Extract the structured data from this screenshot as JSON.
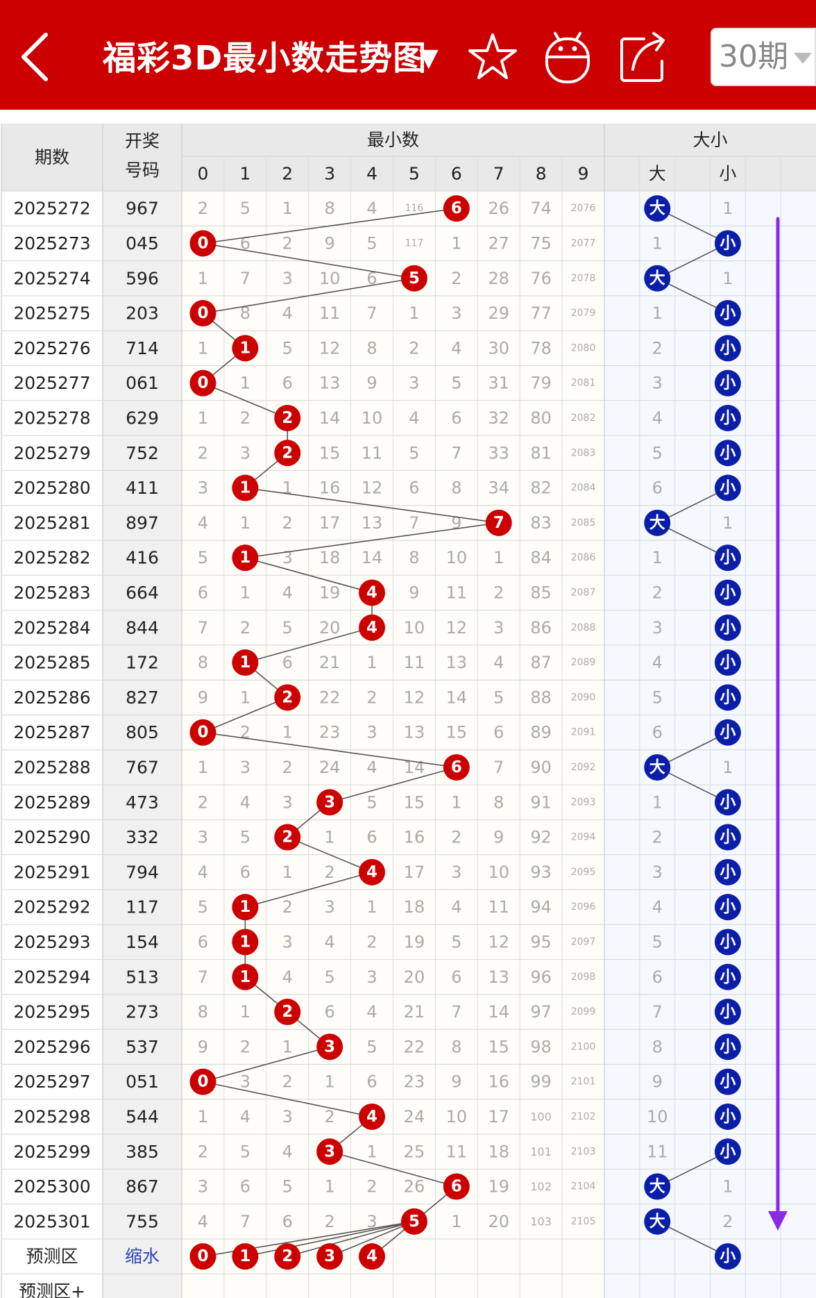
{
  "app": {
    "title": "福彩3D最小数走势图",
    "period_selector": "30期"
  },
  "header_icons": [
    "back-arrow-icon",
    "star-icon",
    "android-robot-icon",
    "share-icon"
  ],
  "table": {
    "col_period": "期数",
    "col_number_line1": "开奖",
    "col_number_line2": "号码",
    "group_min": "最小数",
    "group_size": "大小",
    "digit_headers": [
      "0",
      "1",
      "2",
      "3",
      "4",
      "5",
      "6",
      "7",
      "8",
      "9"
    ],
    "size_headers": [
      "大",
      "",
      "小",
      ""
    ],
    "big_label": "大",
    "small_label": "小",
    "rows": [
      {
        "period": "2025272",
        "number": "967",
        "cells": [
          "2",
          "5",
          "1",
          "8",
          "4",
          "116",
          "6",
          "26",
          "74",
          "2076"
        ],
        "hit": 6,
        "size": "大",
        "size_cells": [
          "大",
          "",
          "1",
          ""
        ]
      },
      {
        "period": "2025273",
        "number": "045",
        "cells": [
          "0",
          "6",
          "2",
          "9",
          "5",
          "117",
          "1",
          "27",
          "75",
          "2077"
        ],
        "hit": 0,
        "size": "小",
        "size_cells": [
          "1",
          "",
          "小",
          ""
        ]
      },
      {
        "period": "2025274",
        "number": "596",
        "cells": [
          "1",
          "7",
          "3",
          "10",
          "6",
          "5",
          "2",
          "28",
          "76",
          "2078"
        ],
        "hit": 5,
        "size": "大",
        "size_cells": [
          "大",
          "",
          "1",
          ""
        ]
      },
      {
        "period": "2025275",
        "number": "203",
        "cells": [
          "0",
          "8",
          "4",
          "11",
          "7",
          "1",
          "3",
          "29",
          "77",
          "2079"
        ],
        "hit": 0,
        "size": "小",
        "size_cells": [
          "1",
          "",
          "小",
          ""
        ]
      },
      {
        "period": "2025276",
        "number": "714",
        "cells": [
          "1",
          "1",
          "5",
          "12",
          "8",
          "2",
          "4",
          "30",
          "78",
          "2080"
        ],
        "hit": 1,
        "size": "小",
        "size_cells": [
          "2",
          "",
          "小",
          ""
        ]
      },
      {
        "period": "2025277",
        "number": "061",
        "cells": [
          "0",
          "1",
          "6",
          "13",
          "9",
          "3",
          "5",
          "31",
          "79",
          "2081"
        ],
        "hit": 0,
        "size": "小",
        "size_cells": [
          "3",
          "",
          "小",
          ""
        ]
      },
      {
        "period": "2025278",
        "number": "629",
        "cells": [
          "1",
          "2",
          "2",
          "14",
          "10",
          "4",
          "6",
          "32",
          "80",
          "2082"
        ],
        "hit": 2,
        "size": "小",
        "size_cells": [
          "4",
          "",
          "小",
          ""
        ]
      },
      {
        "period": "2025279",
        "number": "752",
        "cells": [
          "2",
          "3",
          "2",
          "15",
          "11",
          "5",
          "7",
          "33",
          "81",
          "2083"
        ],
        "hit": 2,
        "size": "小",
        "size_cells": [
          "5",
          "",
          "小",
          ""
        ]
      },
      {
        "period": "2025280",
        "number": "411",
        "cells": [
          "3",
          "1",
          "1",
          "16",
          "12",
          "6",
          "8",
          "34",
          "82",
          "2084"
        ],
        "hit": 1,
        "size": "小",
        "size_cells": [
          "6",
          "",
          "小",
          ""
        ]
      },
      {
        "period": "2025281",
        "number": "897",
        "cells": [
          "4",
          "1",
          "2",
          "17",
          "13",
          "7",
          "9",
          "7",
          "83",
          "2085"
        ],
        "hit": 7,
        "size": "大",
        "size_cells": [
          "大",
          "",
          "1",
          ""
        ]
      },
      {
        "period": "2025282",
        "number": "416",
        "cells": [
          "5",
          "1",
          "3",
          "18",
          "14",
          "8",
          "10",
          "1",
          "84",
          "2086"
        ],
        "hit": 1,
        "size": "小",
        "size_cells": [
          "1",
          "",
          "小",
          ""
        ]
      },
      {
        "period": "2025283",
        "number": "664",
        "cells": [
          "6",
          "1",
          "4",
          "19",
          "4",
          "9",
          "11",
          "2",
          "85",
          "2087"
        ],
        "hit": 4,
        "size": "小",
        "size_cells": [
          "2",
          "",
          "小",
          ""
        ]
      },
      {
        "period": "2025284",
        "number": "844",
        "cells": [
          "7",
          "2",
          "5",
          "20",
          "4",
          "10",
          "12",
          "3",
          "86",
          "2088"
        ],
        "hit": 4,
        "size": "小",
        "size_cells": [
          "3",
          "",
          "小",
          ""
        ]
      },
      {
        "period": "2025285",
        "number": "172",
        "cells": [
          "8",
          "1",
          "6",
          "21",
          "1",
          "11",
          "13",
          "4",
          "87",
          "2089"
        ],
        "hit": 1,
        "size": "小",
        "size_cells": [
          "4",
          "",
          "小",
          ""
        ]
      },
      {
        "period": "2025286",
        "number": "827",
        "cells": [
          "9",
          "1",
          "2",
          "22",
          "2",
          "12",
          "14",
          "5",
          "88",
          "2090"
        ],
        "hit": 2,
        "size": "小",
        "size_cells": [
          "5",
          "",
          "小",
          ""
        ]
      },
      {
        "period": "2025287",
        "number": "805",
        "cells": [
          "0",
          "2",
          "1",
          "23",
          "3",
          "13",
          "15",
          "6",
          "89",
          "2091"
        ],
        "hit": 0,
        "size": "小",
        "size_cells": [
          "6",
          "",
          "小",
          ""
        ]
      },
      {
        "period": "2025288",
        "number": "767",
        "cells": [
          "1",
          "3",
          "2",
          "24",
          "4",
          "14",
          "6",
          "7",
          "90",
          "2092"
        ],
        "hit": 6,
        "size": "大",
        "size_cells": [
          "大",
          "",
          "1",
          ""
        ]
      },
      {
        "period": "2025289",
        "number": "473",
        "cells": [
          "2",
          "4",
          "3",
          "3",
          "5",
          "15",
          "1",
          "8",
          "91",
          "2093"
        ],
        "hit": 3,
        "size": "小",
        "size_cells": [
          "1",
          "",
          "小",
          ""
        ]
      },
      {
        "period": "2025290",
        "number": "332",
        "cells": [
          "3",
          "5",
          "2",
          "1",
          "6",
          "16",
          "2",
          "9",
          "92",
          "2094"
        ],
        "hit": 2,
        "size": "小",
        "size_cells": [
          "2",
          "",
          "小",
          ""
        ]
      },
      {
        "period": "2025291",
        "number": "794",
        "cells": [
          "4",
          "6",
          "1",
          "2",
          "4",
          "17",
          "3",
          "10",
          "93",
          "2095"
        ],
        "hit": 4,
        "size": "小",
        "size_cells": [
          "3",
          "",
          "小",
          ""
        ]
      },
      {
        "period": "2025292",
        "number": "117",
        "cells": [
          "5",
          "1",
          "2",
          "3",
          "1",
          "18",
          "4",
          "11",
          "94",
          "2096"
        ],
        "hit": 1,
        "size": "小",
        "size_cells": [
          "4",
          "",
          "小",
          ""
        ]
      },
      {
        "period": "2025293",
        "number": "154",
        "cells": [
          "6",
          "1",
          "3",
          "4",
          "2",
          "19",
          "5",
          "12",
          "95",
          "2097"
        ],
        "hit": 1,
        "size": "小",
        "size_cells": [
          "5",
          "",
          "小",
          ""
        ]
      },
      {
        "period": "2025294",
        "number": "513",
        "cells": [
          "7",
          "1",
          "4",
          "5",
          "3",
          "20",
          "6",
          "13",
          "96",
          "2098"
        ],
        "hit": 1,
        "size": "小",
        "size_cells": [
          "6",
          "",
          "小",
          ""
        ]
      },
      {
        "period": "2025295",
        "number": "273",
        "cells": [
          "8",
          "1",
          "2",
          "6",
          "4",
          "21",
          "7",
          "14",
          "97",
          "2099"
        ],
        "hit": 2,
        "size": "小",
        "size_cells": [
          "7",
          "",
          "小",
          ""
        ]
      },
      {
        "period": "2025296",
        "number": "537",
        "cells": [
          "9",
          "2",
          "1",
          "3",
          "5",
          "22",
          "8",
          "15",
          "98",
          "2100"
        ],
        "hit": 3,
        "size": "小",
        "size_cells": [
          "8",
          "",
          "小",
          ""
        ]
      },
      {
        "period": "2025297",
        "number": "051",
        "cells": [
          "0",
          "3",
          "2",
          "1",
          "6",
          "23",
          "9",
          "16",
          "99",
          "2101"
        ],
        "hit": 0,
        "size": "小",
        "size_cells": [
          "9",
          "",
          "小",
          ""
        ]
      },
      {
        "period": "2025298",
        "number": "544",
        "cells": [
          "1",
          "4",
          "3",
          "2",
          "4",
          "24",
          "10",
          "17",
          "100",
          "2102"
        ],
        "hit": 4,
        "size": "小",
        "size_cells": [
          "10",
          "",
          "小",
          ""
        ]
      },
      {
        "period": "2025299",
        "number": "385",
        "cells": [
          "2",
          "5",
          "4",
          "3",
          "1",
          "25",
          "11",
          "18",
          "101",
          "2103"
        ],
        "hit": 3,
        "size": "小",
        "size_cells": [
          "11",
          "",
          "小",
          ""
        ]
      },
      {
        "period": "2025300",
        "number": "867",
        "cells": [
          "3",
          "6",
          "5",
          "1",
          "2",
          "26",
          "6",
          "19",
          "102",
          "2104"
        ],
        "hit": 6,
        "size": "大",
        "size_cells": [
          "大",
          "",
          "1",
          ""
        ]
      },
      {
        "period": "2025301",
        "number": "755",
        "cells": [
          "4",
          "7",
          "6",
          "2",
          "3",
          "5",
          "1",
          "20",
          "103",
          "2105"
        ],
        "hit": 5,
        "size": "大",
        "size_cells": [
          "大",
          "",
          "2",
          ""
        ]
      }
    ],
    "predict_row": {
      "label": "预测区",
      "action": "缩水",
      "balls": [
        "0",
        "1",
        "2",
        "3",
        "4"
      ],
      "size_ball": "小"
    },
    "predict_plus_label": "预测区+"
  },
  "colors": {
    "brand_red": "#cc0000",
    "ball_red": "#cc0000",
    "ball_blue": "#0b1ea8",
    "header_gray": "#e9e9e9",
    "size_col_bg": "#f5f9ff",
    "arrow_purple": "#8a2be2",
    "miss_text": "#aaaaaa"
  }
}
